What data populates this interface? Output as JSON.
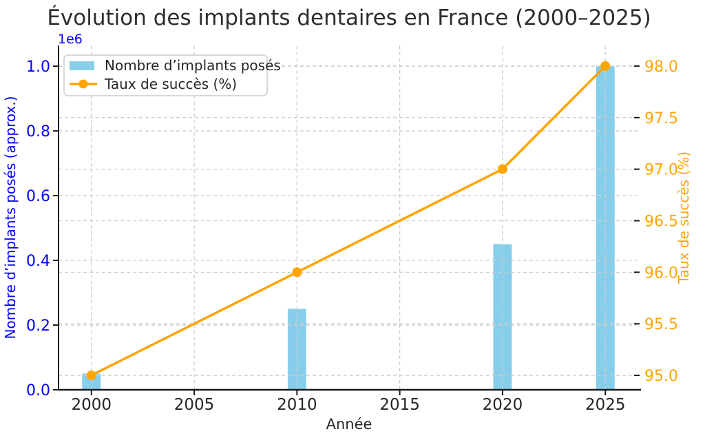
{
  "chart_data": {
    "type": "bar",
    "subtype": "dual-axis-bar-line",
    "title": "Évolution des implants dentaires en France (2000–2025)",
    "xlabel": "Année",
    "ylabel_left": "Nombre d’implants posés (approx.)",
    "ylabel_right": "Taux de succès (%)",
    "y_left_offset_label": "1e6",
    "x": [
      2000,
      2010,
      2020,
      2025
    ],
    "series": [
      {
        "name": "Nombre d’implants posés",
        "type": "bar",
        "axis": "left",
        "color": "#87CEEB",
        "values": [
          50000,
          250000,
          450000,
          1000000
        ]
      },
      {
        "name": "Taux de succès (%)",
        "type": "line",
        "axis": "right",
        "color": "#FFA500",
        "marker": "circle",
        "values": [
          95.0,
          96.0,
          97.0,
          98.0
        ]
      }
    ],
    "x_ticks": [
      2000,
      2005,
      2010,
      2015,
      2020,
      2025
    ],
    "y_left_ticks_e6": [
      0.0,
      0.2,
      0.4,
      0.6,
      0.8,
      1.0
    ],
    "y_right_ticks": [
      95.0,
      95.5,
      96.0,
      96.5,
      97.0,
      97.5,
      98.0
    ],
    "xlim": [
      1998.4,
      2026.7
    ],
    "ylim_left_e6": [
      0,
      1.064
    ],
    "ylim_right": [
      94.86,
      98.2
    ],
    "grid": true,
    "grid_style": "dashed",
    "legend_position": "upper left",
    "bar_width_years": 0.9,
    "colors": {
      "bar": "#87CEEB",
      "line": "#FFA500",
      "left_axis": "#0000FF",
      "right_axis": "#FFA500",
      "text": "#262626",
      "grid": "#cccccc",
      "spine": "#1a1a1a",
      "legend_border": "#cccccc"
    }
  }
}
